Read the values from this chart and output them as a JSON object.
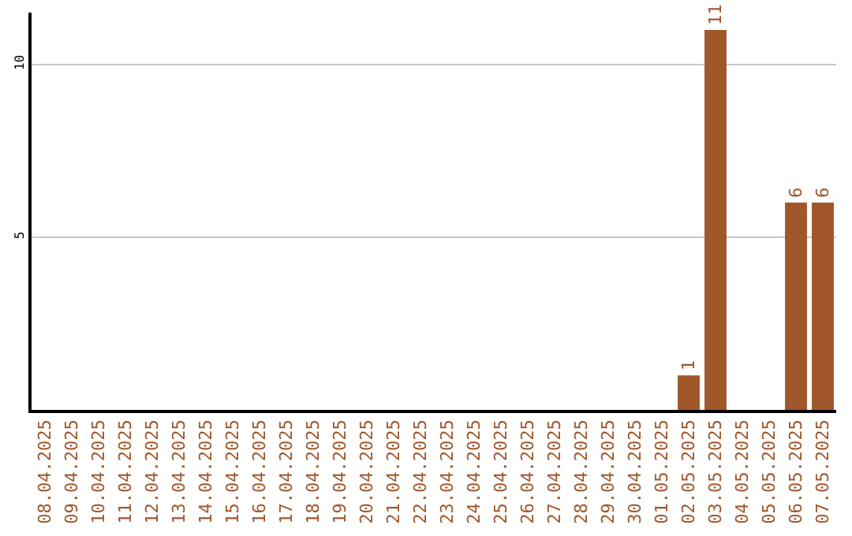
{
  "chart_data": {
    "type": "bar",
    "categories": [
      "08.04.2025",
      "09.04.2025",
      "10.04.2025",
      "11.04.2025",
      "12.04.2025",
      "13.04.2025",
      "14.04.2025",
      "15.04.2025",
      "16.04.2025",
      "17.04.2025",
      "18.04.2025",
      "19.04.2025",
      "20.04.2025",
      "21.04.2025",
      "22.04.2025",
      "23.04.2025",
      "24.04.2025",
      "25.04.2025",
      "26.04.2025",
      "27.04.2025",
      "28.04.2025",
      "29.04.2025",
      "30.04.2025",
      "01.05.2025",
      "02.05.2025",
      "03.05.2025",
      "04.05.2025",
      "05.05.2025",
      "06.05.2025",
      "07.05.2025"
    ],
    "values": [
      0,
      0,
      0,
      0,
      0,
      0,
      0,
      0,
      0,
      0,
      0,
      0,
      0,
      0,
      0,
      0,
      0,
      0,
      0,
      0,
      0,
      0,
      0,
      0,
      1,
      11,
      0,
      0,
      6,
      6
    ],
    "value_labels": [
      null,
      null,
      null,
      null,
      null,
      null,
      null,
      null,
      null,
      null,
      null,
      null,
      null,
      null,
      null,
      null,
      null,
      null,
      null,
      null,
      null,
      null,
      null,
      null,
      "1",
      "11",
      null,
      null,
      "6",
      "6"
    ],
    "color": "#a0572a",
    "ylim": [
      0,
      11.5
    ],
    "yticks": [
      5,
      10
    ],
    "grid": "y",
    "legend": false
  }
}
